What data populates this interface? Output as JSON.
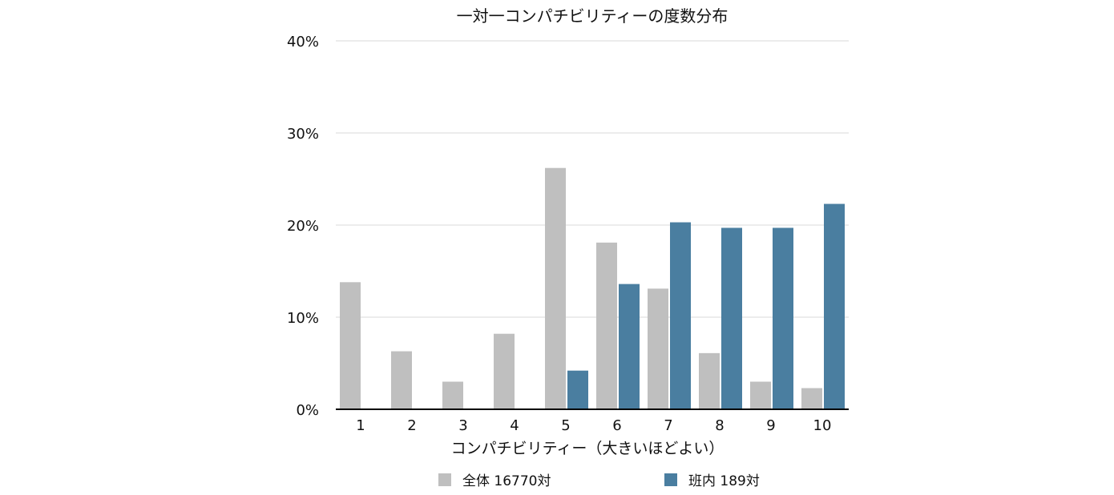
{
  "chart_data": {
    "type": "bar",
    "title": "一対一コンパチビリティーの度数分布",
    "xlabel": "コンパチビリティー（大きいほどよい）",
    "ylabel": "",
    "ylim": [
      0,
      40
    ],
    "yticks": [
      "0%",
      "10%",
      "20%",
      "30%",
      "40%"
    ],
    "ytick_values": [
      0,
      10,
      20,
      30,
      40
    ],
    "categories": [
      "1",
      "2",
      "3",
      "4",
      "5",
      "6",
      "7",
      "8",
      "9",
      "10"
    ],
    "grid": true,
    "legend_position": "bottom",
    "series": [
      {
        "name": "全体 16770対",
        "color": "#bfbfbf",
        "values": [
          13.8,
          6.3,
          3.0,
          8.2,
          26.2,
          18.1,
          13.1,
          6.1,
          3.0,
          2.3
        ]
      },
      {
        "name": "班内 189対",
        "color": "#4a7ea0",
        "values": [
          0,
          0,
          0,
          0,
          4.2,
          13.6,
          20.3,
          19.7,
          19.7,
          22.3
        ]
      }
    ]
  }
}
